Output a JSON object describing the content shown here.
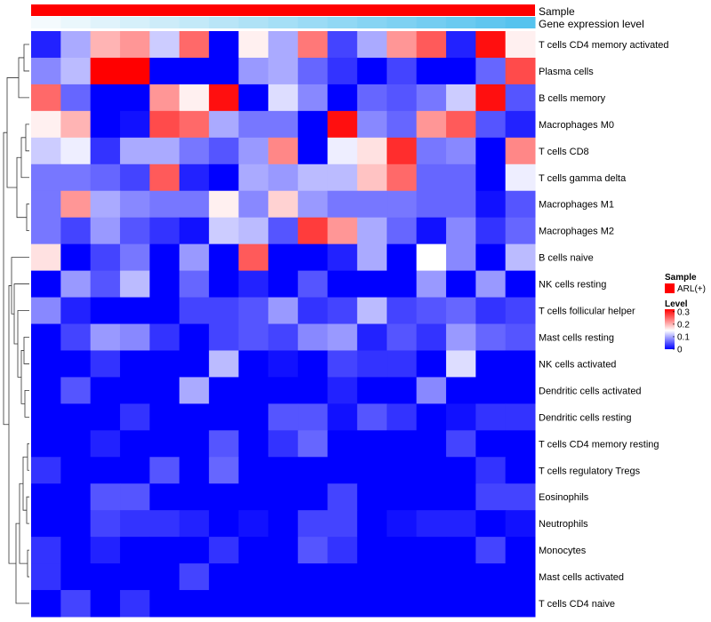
{
  "chart_data": {
    "type": "heatmap",
    "title": "",
    "annotation_labels": [
      "Sample",
      "Gene expression level"
    ],
    "rows": [
      "T cells CD4 memory activated",
      "Plasma cells",
      "B cells memory",
      "Macrophages M0",
      "T cells CD8",
      "T cells gamma delta",
      "Macrophages M1",
      "Macrophages M2",
      "B cells naive",
      "NK cells resting",
      "T cells follicular helper",
      "Mast cells resting",
      "NK cells activated",
      "Dendritic cells activated",
      "Dendritic cells resting",
      "T cells CD4 memory resting",
      "T cells regulatory  Tregs",
      "Eosinophils",
      "Neutrophils",
      "Monocytes",
      "Mast cells activated",
      "T cells CD4 naive"
    ],
    "n_columns": 17,
    "values": [
      [
        0.02,
        0.1,
        0.2,
        0.22,
        0.12,
        0.25,
        0.0,
        0.16,
        0.1,
        0.24,
        0.04,
        0.1,
        0.22,
        0.26,
        0.02,
        0.31,
        0.16
      ],
      [
        0.08,
        0.11,
        0.32,
        0.34,
        0.0,
        0.0,
        0.0,
        0.09,
        0.1,
        0.06,
        0.03,
        0.0,
        0.04,
        0.0,
        0.0,
        0.06,
        0.27
      ],
      [
        0.25,
        0.06,
        0.0,
        0.0,
        0.22,
        0.16,
        0.31,
        0.0,
        0.13,
        0.08,
        0.0,
        0.06,
        0.05,
        0.07,
        0.12,
        0.31,
        0.05
      ],
      [
        0.16,
        0.2,
        0.0,
        0.01,
        0.27,
        0.25,
        0.1,
        0.07,
        0.07,
        0.0,
        0.31,
        0.08,
        0.06,
        0.22,
        0.26,
        0.05,
        0.02
      ],
      [
        0.12,
        0.14,
        0.03,
        0.1,
        0.1,
        0.07,
        0.05,
        0.09,
        0.23,
        0.0,
        0.14,
        0.17,
        0.29,
        0.07,
        0.08,
        0.0,
        0.23
      ],
      [
        0.07,
        0.07,
        0.06,
        0.04,
        0.26,
        0.02,
        0.0,
        0.1,
        0.09,
        0.11,
        0.11,
        0.19,
        0.25,
        0.06,
        0.06,
        0.0,
        0.14
      ],
      [
        0.07,
        0.22,
        0.1,
        0.08,
        0.07,
        0.07,
        0.16,
        0.08,
        0.18,
        0.09,
        0.07,
        0.07,
        0.07,
        0.06,
        0.06,
        0.01,
        0.05
      ],
      [
        0.07,
        0.04,
        0.09,
        0.05,
        0.03,
        0.01,
        0.12,
        0.11,
        0.05,
        0.28,
        0.22,
        0.1,
        0.06,
        0.01,
        0.08,
        0.03,
        0.06
      ],
      [
        0.17,
        0.0,
        0.04,
        0.07,
        0.0,
        0.09,
        0.0,
        0.26,
        0.0,
        0.0,
        0.02,
        0.1,
        0.0,
        0.15,
        0.08,
        0.0,
        0.11
      ],
      [
        0.0,
        0.09,
        0.05,
        0.11,
        0.0,
        0.06,
        0.0,
        0.02,
        0.0,
        0.05,
        0.0,
        0.0,
        0.0,
        0.09,
        0.0,
        0.09,
        0.0
      ],
      [
        0.08,
        0.02,
        0.0,
        0.0,
        0.0,
        0.04,
        0.04,
        0.05,
        0.09,
        0.03,
        0.04,
        0.11,
        0.04,
        0.05,
        0.06,
        0.03,
        0.04
      ],
      [
        0.0,
        0.04,
        0.09,
        0.08,
        0.03,
        0.0,
        0.04,
        0.05,
        0.04,
        0.08,
        0.09,
        0.02,
        0.05,
        0.03,
        0.09,
        0.06,
        0.05
      ],
      [
        0.0,
        0.0,
        0.03,
        0.0,
        0.0,
        0.0,
        0.11,
        0.0,
        0.01,
        0.0,
        0.04,
        0.03,
        0.03,
        0.0,
        0.13,
        0.0,
        0.0
      ],
      [
        0.0,
        0.05,
        0.0,
        0.0,
        0.0,
        0.1,
        0.0,
        0.0,
        0.0,
        0.0,
        0.02,
        0.0,
        0.0,
        0.08,
        0.0,
        0.0,
        0.0
      ],
      [
        0.0,
        0.0,
        0.0,
        0.03,
        0.0,
        0.0,
        0.0,
        0.0,
        0.05,
        0.05,
        0.01,
        0.05,
        0.03,
        0.0,
        0.01,
        0.03,
        0.03
      ],
      [
        0.0,
        0.0,
        0.02,
        0.0,
        0.0,
        0.0,
        0.05,
        0.0,
        0.03,
        0.06,
        0.0,
        0.0,
        0.0,
        0.0,
        0.04,
        0.0,
        0.0
      ],
      [
        0.03,
        0.0,
        0.0,
        0.0,
        0.05,
        0.0,
        0.06,
        0.0,
        0.0,
        0.0,
        0.0,
        0.0,
        0.0,
        0.0,
        0.0,
        0.03,
        0.0
      ],
      [
        0.0,
        0.0,
        0.05,
        0.05,
        0.0,
        0.0,
        0.0,
        0.0,
        0.0,
        0.0,
        0.04,
        0.0,
        0.0,
        0.0,
        0.0,
        0.04,
        0.04
      ],
      [
        0.0,
        0.0,
        0.04,
        0.03,
        0.03,
        0.02,
        0.0,
        0.01,
        0.0,
        0.04,
        0.04,
        0.0,
        0.01,
        0.02,
        0.02,
        0.0,
        0.01
      ],
      [
        0.03,
        0.0,
        0.02,
        0.0,
        0.0,
        0.0,
        0.03,
        0.0,
        0.0,
        0.05,
        0.03,
        0.0,
        0.0,
        0.0,
        0.0,
        0.04,
        0.0
      ],
      [
        0.03,
        0.0,
        0.0,
        0.0,
        0.0,
        0.04,
        0.0,
        0.0,
        0.0,
        0.0,
        0.0,
        0.0,
        0.0,
        0.0,
        0.0,
        0.0,
        0.0
      ],
      [
        0.0,
        0.04,
        0.0,
        0.03,
        0.0,
        0.0,
        0.0,
        0.0,
        0.0,
        0.0,
        0.0,
        0.0,
        0.0,
        0.0,
        0.0,
        0.0,
        0.0
      ]
    ],
    "sample_annotation": {
      "label": "ARL(+)",
      "color": "#ff0000"
    },
    "expression_annotation": {
      "from_color": "#f4fafd",
      "to_color": "#56c3ee"
    },
    "color_scale": {
      "min": 0,
      "mid": 0.15,
      "max": 0.32,
      "low_color": "#0000ff",
      "mid_color": "#ffffff",
      "high_color": "#ff0000"
    },
    "legend": {
      "sample_title": "Sample",
      "sample_entries": [
        "ARL(+)"
      ],
      "level_title": "Level",
      "level_ticks": [
        0.3,
        0.2,
        0.1,
        0
      ]
    }
  }
}
